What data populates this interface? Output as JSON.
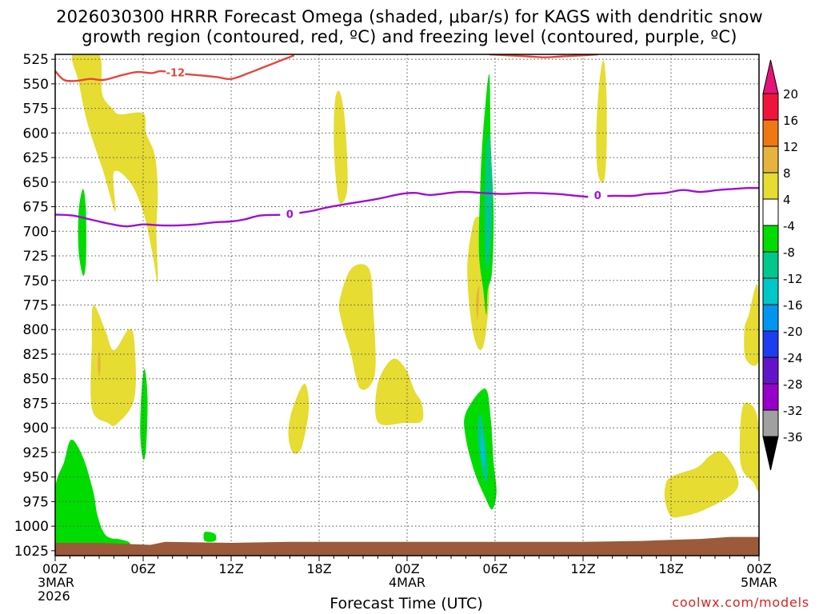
{
  "title_line1": "2026030300 HRRR Forecast Omega (shaded, μbar/s) for KAGS with dendritic snow",
  "title_line2": "growth region (contoured, red, ºC) and freezing level (contoured, purple, ºC)",
  "credit": "coolwx.com/models",
  "chart_data": {
    "type": "contour-time-height",
    "xlabel": "Forecast Time (UTC)",
    "ylabel": "",
    "x_range_hours": [
      0,
      48
    ],
    "y_range_hpa": [
      520,
      1030
    ],
    "y_ticks": [
      525,
      550,
      575,
      600,
      625,
      650,
      675,
      700,
      725,
      750,
      775,
      800,
      825,
      850,
      875,
      900,
      925,
      950,
      975,
      1000,
      1025
    ],
    "x_ticks": [
      {
        "hour": 0,
        "lines": [
          "00Z",
          "3MAR",
          "2026"
        ]
      },
      {
        "hour": 6,
        "lines": [
          "06Z"
        ]
      },
      {
        "hour": 12,
        "lines": [
          "12Z"
        ]
      },
      {
        "hour": 18,
        "lines": [
          "18Z"
        ]
      },
      {
        "hour": 24,
        "lines": [
          "00Z",
          "4MAR"
        ]
      },
      {
        "hour": 30,
        "lines": [
          "06Z"
        ]
      },
      {
        "hour": 36,
        "lines": [
          "12Z"
        ]
      },
      {
        "hour": 42,
        "lines": [
          "18Z"
        ]
      },
      {
        "hour": 48,
        "lines": [
          "00Z",
          "5MAR"
        ]
      }
    ],
    "grid": true,
    "colorbar": {
      "levels": [
        20,
        16,
        12,
        8,
        4,
        -4,
        -8,
        -12,
        -16,
        -20,
        -24,
        -28,
        -32,
        -36
      ],
      "colors": [
        "#f0143c",
        "#f07814",
        "#e6b43c",
        "#e6dc32",
        "#ffffff",
        "#00dc00",
        "#00c88c",
        "#00c8c8",
        "#0096f0",
        "#1e3cf0",
        "#6414c8",
        "#9600c8",
        "#a0a0a0"
      ],
      "top_arrow_color": "#e6147a",
      "bottom_arrow_color": "#000000"
    },
    "contours": [
      {
        "name": "dendritic snow growth region (-12 ºC)",
        "color": "#e6463c",
        "label": "-12",
        "points": [
          [
            0,
            537
          ],
          [
            0.6,
            546
          ],
          [
            1.4,
            547
          ],
          [
            2.4,
            545
          ],
          [
            3.3,
            546
          ],
          [
            4.6,
            541
          ],
          [
            5.6,
            538
          ],
          [
            6.6,
            539
          ],
          [
            7.2,
            537
          ],
          [
            8.2,
            539
          ],
          [
            9.6,
            541
          ],
          [
            11.0,
            543
          ],
          [
            12.0,
            545
          ],
          [
            13.2,
            539
          ],
          [
            14.4,
            532
          ],
          [
            15.6,
            525
          ],
          [
            16.3,
            521
          ]
        ]
      },
      {
        "name": "dendritic snow growth region (-12 ºC) upper",
        "color": "#e6463c",
        "label": "",
        "points": [
          [
            29.6,
            520
          ],
          [
            30.8,
            521
          ],
          [
            32.2,
            522
          ],
          [
            33.4,
            523
          ],
          [
            34.6,
            522
          ],
          [
            36.0,
            521
          ],
          [
            37.0,
            520
          ]
        ]
      },
      {
        "name": "freezing level (0 ºC)",
        "color": "#a00fd2",
        "label": "0",
        "points": [
          [
            0,
            683
          ],
          [
            1.2,
            684
          ],
          [
            2.4,
            688
          ],
          [
            3.6,
            692
          ],
          [
            4.8,
            695
          ],
          [
            6.0,
            693
          ],
          [
            7.2,
            694
          ],
          [
            8.4,
            694
          ],
          [
            9.6,
            693
          ],
          [
            10.8,
            691
          ],
          [
            12.0,
            690
          ],
          [
            12.9,
            688
          ],
          [
            14.0,
            684
          ],
          [
            15.6,
            683
          ],
          [
            16.8,
            681
          ],
          [
            17.6,
            679
          ],
          [
            18.8,
            675
          ],
          [
            20.4,
            671
          ],
          [
            22.0,
            667
          ],
          [
            23.6,
            662
          ],
          [
            24.6,
            661
          ],
          [
            25.6,
            663
          ],
          [
            27.6,
            660
          ],
          [
            29.2,
            661
          ],
          [
            30.6,
            662
          ],
          [
            32.4,
            661
          ],
          [
            34.2,
            662
          ],
          [
            35.6,
            664
          ],
          [
            36.6,
            665
          ],
          [
            38.0,
            664
          ],
          [
            39.4,
            664
          ],
          [
            40.4,
            662
          ],
          [
            41.6,
            661
          ],
          [
            42.8,
            658
          ],
          [
            44.0,
            660
          ],
          [
            45.2,
            658
          ],
          [
            46.2,
            657
          ],
          [
            47.2,
            656
          ],
          [
            48,
            656
          ]
        ]
      }
    ],
    "filled_regions": [
      {
        "level": 4,
        "color": "#e6dc32",
        "points": [
          [
            1.2,
            520
          ],
          [
            3.0,
            520
          ],
          [
            3.2,
            560
          ],
          [
            3.9,
            575
          ],
          [
            4.4,
            581
          ],
          [
            6.0,
            580
          ],
          [
            6.2,
            600
          ],
          [
            6.8,
            623
          ],
          [
            7.0,
            660
          ],
          [
            6.9,
            700
          ],
          [
            7.0,
            752
          ],
          [
            6.6,
            720
          ],
          [
            6.0,
            680
          ],
          [
            5.1,
            650
          ],
          [
            4.0,
            640
          ],
          [
            4.1,
            680
          ],
          [
            3.3,
            640
          ],
          [
            2.2,
            590
          ],
          [
            1.6,
            548
          ]
        ]
      },
      {
        "level": 4,
        "color": "#e6dc32",
        "points": [
          [
            19.4,
            558
          ],
          [
            19.7,
            580
          ],
          [
            19.9,
            620
          ],
          [
            19.9,
            660
          ],
          [
            19.4,
            671
          ],
          [
            19.1,
            640
          ],
          [
            19.0,
            600
          ],
          [
            19.1,
            565
          ]
        ]
      },
      {
        "level": 4,
        "color": "#e6dc32",
        "points": [
          [
            37.4,
            526
          ],
          [
            37.6,
            560
          ],
          [
            37.6,
            620
          ],
          [
            37.4,
            650
          ],
          [
            37.0,
            640
          ],
          [
            36.9,
            600
          ],
          [
            37.1,
            550
          ]
        ]
      },
      {
        "level": 4,
        "color": "#e6dc32",
        "points": [
          [
            2.6,
            775
          ],
          [
            3.4,
            800
          ],
          [
            4.0,
            821
          ],
          [
            5.0,
            800
          ],
          [
            5.4,
            812
          ],
          [
            5.4,
            870
          ],
          [
            4.2,
            896
          ],
          [
            3.6,
            895
          ],
          [
            2.5,
            880
          ],
          [
            2.5,
            815
          ]
        ]
      },
      {
        "level": 4,
        "color": "#e6dc32",
        "points": [
          [
            20.2,
            738
          ],
          [
            21.4,
            738
          ],
          [
            21.7,
            780
          ],
          [
            21.8,
            845
          ],
          [
            20.8,
            860
          ],
          [
            20.1,
            820
          ],
          [
            19.5,
            790
          ],
          [
            19.4,
            770
          ]
        ]
      },
      {
        "level": 4,
        "color": "#e6dc32",
        "points": [
          [
            17.0,
            855
          ],
          [
            17.3,
            880
          ],
          [
            16.8,
            920
          ],
          [
            16.2,
            925
          ],
          [
            15.9,
            905
          ],
          [
            16.2,
            880
          ]
        ]
      },
      {
        "level": 4,
        "color": "#e6dc32",
        "points": [
          [
            22.0,
            855
          ],
          [
            23.0,
            830
          ],
          [
            23.9,
            840
          ],
          [
            24.5,
            862
          ],
          [
            25.0,
            875
          ],
          [
            25.0,
            893
          ],
          [
            23.8,
            895
          ],
          [
            22.0,
            894
          ]
        ]
      },
      {
        "level": 4,
        "color": "#e6dc32",
        "points": [
          [
            28.8,
            685
          ],
          [
            29.4,
            700
          ],
          [
            29.6,
            760
          ],
          [
            29.3,
            810
          ],
          [
            28.9,
            820
          ],
          [
            28.4,
            795
          ],
          [
            28.1,
            740
          ],
          [
            28.4,
            700
          ]
        ]
      },
      {
        "level": 4,
        "color": "#e6dc32",
        "points": [
          [
            47.9,
            755
          ],
          [
            48.0,
            830
          ],
          [
            47.1,
            830
          ],
          [
            47.0,
            800
          ],
          [
            47.3,
            785
          ]
        ]
      },
      {
        "level": 4,
        "color": "#e6dc32",
        "points": [
          [
            47.0,
            875
          ],
          [
            47.9,
            890
          ],
          [
            48.0,
            960
          ],
          [
            47.6,
            955
          ],
          [
            46.8,
            940
          ],
          [
            46.7,
            905
          ]
        ]
      },
      {
        "level": 4,
        "color": "#e6dc32",
        "points": [
          [
            43.8,
            940
          ],
          [
            44.6,
            929
          ],
          [
            45.4,
            924
          ],
          [
            46.2,
            938
          ],
          [
            46.6,
            955
          ],
          [
            46.3,
            966
          ],
          [
            45.4,
            975
          ],
          [
            44.0,
            985
          ],
          [
            42.8,
            990
          ],
          [
            42.0,
            990
          ],
          [
            41.6,
            975
          ],
          [
            41.6,
            960
          ],
          [
            42.0,
            950
          ]
        ]
      },
      {
        "level": 8,
        "color": "#e6b43c",
        "points": [
          [
            3.0,
            822
          ],
          [
            3.1,
            835
          ],
          [
            3.0,
            848
          ],
          [
            2.9,
            835
          ]
        ]
      },
      {
        "level": 8,
        "color": "#e6b43c",
        "points": [
          [
            28.9,
            755
          ],
          [
            28.9,
            770
          ],
          [
            28.8,
            790
          ],
          [
            28.7,
            770
          ]
        ]
      },
      {
        "level": -4,
        "color": "#00dc00",
        "points": [
          [
            1.9,
            657
          ],
          [
            2.1,
            680
          ],
          [
            2.1,
            730
          ],
          [
            1.9,
            745
          ],
          [
            1.6,
            720
          ],
          [
            1.6,
            680
          ]
        ]
      },
      {
        "level": -4,
        "color": "#00dc00",
        "points": [
          [
            6.1,
            840
          ],
          [
            6.3,
            870
          ],
          [
            6.2,
            920
          ],
          [
            6.0,
            932
          ],
          [
            5.8,
            905
          ],
          [
            5.9,
            860
          ]
        ]
      },
      {
        "level": -4,
        "color": "#00dc00",
        "points": [
          [
            0,
            962
          ],
          [
            0.6,
            935
          ],
          [
            1.1,
            912
          ],
          [
            1.9,
            930
          ],
          [
            2.6,
            965
          ],
          [
            2.9,
            990
          ],
          [
            3.5,
            1010
          ],
          [
            4.8,
            1015
          ],
          [
            4.8,
            1020
          ],
          [
            2.8,
            1021
          ],
          [
            1.6,
            1021
          ],
          [
            0,
            1022
          ]
        ]
      },
      {
        "level": -4,
        "color": "#00dc00",
        "points": [
          [
            10.2,
            1006
          ],
          [
            10.9,
            1008
          ],
          [
            10.9,
            1015
          ],
          [
            10.2,
            1015
          ]
        ]
      },
      {
        "level": -4,
        "color": "#00dc00",
        "points": [
          [
            4.0,
            1013
          ],
          [
            5.0,
            1016
          ],
          [
            5.0,
            1021
          ],
          [
            4.0,
            1021
          ]
        ]
      },
      {
        "level": -4,
        "color": "#00dc00",
        "points": [
          [
            29.7,
            610
          ],
          [
            29.9,
            680
          ],
          [
            29.8,
            740
          ],
          [
            29.5,
            760
          ],
          [
            29.4,
            785
          ],
          [
            29.2,
            760
          ],
          [
            28.9,
            720
          ],
          [
            29.0,
            650
          ],
          [
            29.2,
            596
          ],
          [
            29.6,
            540
          ]
        ]
      },
      {
        "level": -4,
        "color": "#00dc00",
        "points": [
          [
            29.3,
            860
          ],
          [
            29.7,
            890
          ],
          [
            29.9,
            935
          ],
          [
            30.1,
            965
          ],
          [
            29.8,
            983
          ],
          [
            29.3,
            970
          ],
          [
            28.6,
            945
          ],
          [
            28.0,
            910
          ],
          [
            28.0,
            885
          ]
        ]
      },
      {
        "level": -8,
        "color": "#00c88c",
        "points": [
          [
            29.55,
            600
          ],
          [
            29.8,
            650
          ],
          [
            29.75,
            700
          ],
          [
            29.45,
            740
          ],
          [
            29.3,
            700
          ],
          [
            29.35,
            640
          ]
        ]
      },
      {
        "level": -8,
        "color": "#00c88c",
        "points": [
          [
            29.0,
            885
          ],
          [
            29.3,
            910
          ],
          [
            29.5,
            945
          ],
          [
            29.3,
            955
          ],
          [
            29.0,
            930
          ],
          [
            28.8,
            905
          ]
        ]
      },
      {
        "level": -12,
        "color": "#00c8c8",
        "points": [
          [
            29.1,
            905
          ],
          [
            29.3,
            925
          ],
          [
            29.2,
            940
          ],
          [
            29.0,
            925
          ]
        ]
      }
    ],
    "terrain": {
      "color": "#9c5a3a",
      "points": [
        [
          0,
          1017
        ],
        [
          3,
          1017
        ],
        [
          6.5,
          1019
        ],
        [
          7.5,
          1016
        ],
        [
          12,
          1017
        ],
        [
          16,
          1016
        ],
        [
          18,
          1016
        ],
        [
          24,
          1016
        ],
        [
          30,
          1016
        ],
        [
          36,
          1016
        ],
        [
          40,
          1015
        ],
        [
          42,
          1014
        ],
        [
          44,
          1013
        ],
        [
          46,
          1011
        ],
        [
          48,
          1011
        ]
      ]
    }
  }
}
